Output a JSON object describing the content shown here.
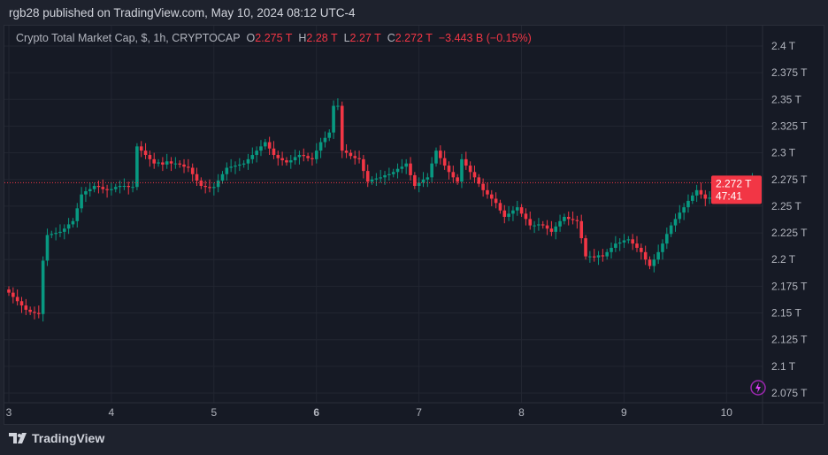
{
  "header": {
    "published": "rgb28 published on TradingView.com, May 10, 2024 08:12 UTC-4"
  },
  "legend": {
    "symbol": "Crypto Total Market Cap, $, 1h, CRYPTOCAP",
    "o_label": "O",
    "o": "2.275 T",
    "h_label": "H",
    "h": "2.28 T",
    "l_label": "L",
    "l": "2.27 T",
    "c_label": "C",
    "c": "2.272 T",
    "change": "−3.443 B (−0.15%)"
  },
  "price_tag": {
    "price": "2.272 T",
    "countdown": "47:41"
  },
  "footer": {
    "brand": "TradingView"
  },
  "colors": {
    "up": "#089981",
    "down": "#f23645",
    "background": "#161a25",
    "grid": "#222631"
  },
  "icons": {
    "footer_logo": "tradingview-logo",
    "bottom_right": "lightning-icon"
  },
  "chart_data": {
    "type": "candlestick",
    "interval": "1h",
    "x_tick_labels": [
      "3",
      "4",
      "5",
      "6",
      "7",
      "8",
      "9",
      "10"
    ],
    "y_tick_labels": [
      "2.4 T",
      "2.375 T",
      "2.35 T",
      "2.325 T",
      "2.3 T",
      "2.275 T",
      "2.25 T",
      "2.225 T",
      "2.2 T",
      "2.175 T",
      "2.15 T",
      "2.125 T",
      "2.1 T",
      "2.075 T"
    ],
    "y_ticks": [
      2.4,
      2.375,
      2.35,
      2.325,
      2.3,
      2.275,
      2.25,
      2.225,
      2.2,
      2.175,
      2.15,
      2.125,
      2.1,
      2.075
    ],
    "ylim": [
      2.062,
      2.418
    ],
    "unit": "T",
    "grid": true,
    "first_open": 2.172,
    "current_price": 2.272,
    "closes": [
      2.169,
      2.165,
      2.161,
      2.157,
      2.153,
      2.151,
      2.15,
      2.149,
      2.199,
      2.223,
      2.224,
      2.225,
      2.226,
      2.229,
      2.233,
      2.236,
      2.248,
      2.261,
      2.264,
      2.266,
      2.269,
      2.268,
      2.266,
      2.265,
      2.266,
      2.268,
      2.269,
      2.269,
      2.268,
      2.268,
      2.306,
      2.302,
      2.298,
      2.294,
      2.29,
      2.291,
      2.289,
      2.292,
      2.29,
      2.29,
      2.289,
      2.287,
      2.286,
      2.28,
      2.274,
      2.269,
      2.268,
      2.267,
      2.268,
      2.274,
      2.28,
      2.286,
      2.287,
      2.288,
      2.289,
      2.29,
      2.294,
      2.298,
      2.302,
      2.306,
      2.31,
      2.304,
      2.298,
      2.295,
      2.293,
      2.291,
      2.293,
      2.296,
      2.298,
      2.297,
      2.295,
      2.294,
      2.302,
      2.31,
      2.314,
      2.319,
      2.344,
      2.344,
      2.302,
      2.3,
      2.297,
      2.295,
      2.294,
      2.283,
      2.273,
      2.275,
      2.276,
      2.277,
      2.279,
      2.28,
      2.282,
      2.285,
      2.287,
      2.29,
      2.279,
      2.269,
      2.272,
      2.275,
      2.277,
      2.29,
      2.302,
      2.295,
      2.288,
      2.282,
      2.277,
      2.273,
      2.294,
      2.288,
      2.282,
      2.277,
      2.271,
      2.265,
      2.261,
      2.257,
      2.253,
      2.246,
      2.24,
      2.243,
      2.246,
      2.249,
      2.243,
      2.238,
      2.232,
      2.232,
      2.233,
      2.232,
      2.229,
      2.226,
      2.231,
      2.236,
      2.24,
      2.238,
      2.237,
      2.236,
      2.22,
      2.203,
      2.203,
      2.202,
      2.204,
      2.203,
      2.207,
      2.211,
      2.215,
      2.216,
      2.218,
      2.219,
      2.215,
      2.211,
      2.207,
      2.2,
      2.194,
      2.2,
      2.207,
      2.215,
      2.224,
      2.232,
      2.238,
      2.244,
      2.249,
      2.255,
      2.26,
      2.265,
      2.261,
      2.257,
      2.258,
      2.259,
      2.26,
      2.261,
      2.264,
      2.266,
      2.269,
      2.268,
      2.266,
      2.265,
      2.275,
      2.272
    ]
  }
}
